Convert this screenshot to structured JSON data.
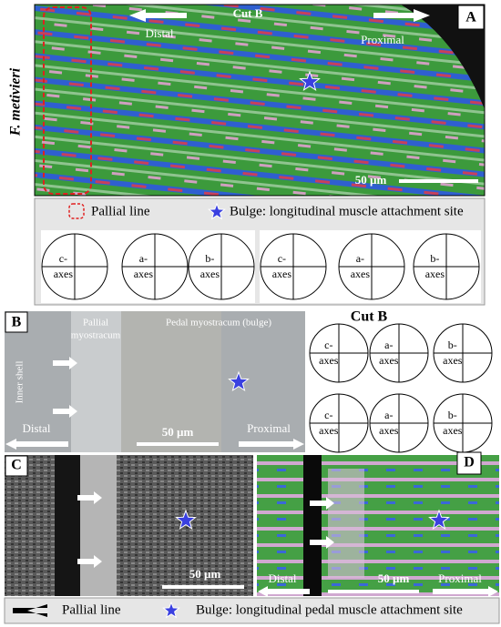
{
  "panel_a": {
    "label": "A",
    "title": "Cut B",
    "distal": "Distal",
    "proximal": "Proximal",
    "species": "F. metivieri",
    "scale_bar": "50 µm",
    "legend": {
      "pallial_line": "Pallial line",
      "bulge": "Bulge: longitudinal muscle attachment site"
    },
    "pole_figures": [
      {
        "top": "c-",
        "bottom": "axes"
      },
      {
        "top": "a-",
        "bottom": "axes"
      },
      {
        "top": "b-",
        "bottom": "axes"
      },
      {
        "top": "c-",
        "bottom": "axes"
      },
      {
        "top": "a-",
        "bottom": "axes"
      },
      {
        "top": "b-",
        "bottom": "axes"
      }
    ]
  },
  "panel_b": {
    "label": "B",
    "pallial_top": "Pallial",
    "pallial_bottom": "myostracum",
    "pedal": "Pedal myostracum (bulge)",
    "inner_shell": "Inner shell",
    "distal": "Distal",
    "proximal": "Proximal",
    "scale_bar": "50 µm",
    "cut": "Cut B",
    "pole_figures": [
      {
        "top": "c-",
        "bottom": "axes"
      },
      {
        "top": "a-",
        "bottom": "axes"
      },
      {
        "top": "b-",
        "bottom": "axes"
      },
      {
        "top": "c-",
        "bottom": "axes"
      },
      {
        "top": "a-",
        "bottom": "axes"
      },
      {
        "top": "b-",
        "bottom": "axes"
      }
    ]
  },
  "panel_c": {
    "label": "C",
    "scale_bar": "50 µm"
  },
  "panel_d": {
    "label": "D",
    "distal": "Distal",
    "scale_bar": "50 µm",
    "proximal": "Proximal"
  },
  "legend": {
    "pallial_line": "Pallial line",
    "bulge": "Bulge: longitudinal pedal muscle attachment site"
  }
}
